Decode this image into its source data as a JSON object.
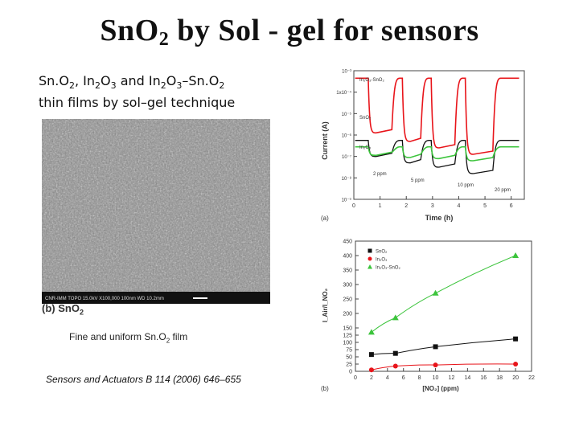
{
  "title_main": "Sn",
  "title_o": "O",
  "title_sub": "2",
  "title_rest": " by Sol - gel for sensors",
  "subtitle_line1_parts": [
    "Sn.O",
    "2",
    ", In",
    "2",
    "O",
    "3",
    " and In",
    "2",
    "O",
    "3",
    "–Sn.O",
    "2"
  ],
  "subtitle_line2": "thin films by sol–gel technique",
  "sem": {
    "info": "CNR-IMM     TOPO     15.0kV  X100,000    100nm    WD 10.2mm",
    "label_prefix": "(b) SnO",
    "label_sub": "2"
  },
  "caption_prefix": "Fine and uniform Sn.O",
  "caption_sub": "2",
  "caption_suffix": " film",
  "reference": "Sensors and Actuators B 114 (2006) 646–655",
  "chart_data": [
    {
      "type": "line",
      "panel_label": "(a)",
      "xlabel": "Time (h)",
      "ylabel": "Current (A)",
      "xlim": [
        0,
        6.5
      ],
      "x_ticks": [
        "0",
        "1",
        "2",
        "3",
        "4",
        "5",
        "6"
      ],
      "y_scale": "log",
      "y_ticks": [
        "10⁻⁹",
        "10⁻⁸",
        "10⁻⁷",
        "10⁻⁶",
        "10⁻⁵",
        "1x10⁻⁴",
        "10⁻³"
      ],
      "series_labels": [
        "In₂O₃-SnO₂",
        "SnO₂",
        "In₂O₃"
      ],
      "annotations": [
        "2 ppm",
        "5 ppm",
        "10 ppm",
        "20 ppm"
      ],
      "colors": {
        "In2O3-SnO2": "#e8141a",
        "SnO2": "#111111",
        "In2O3": "#3cc43c"
      }
    },
    {
      "type": "scatter",
      "panel_label": "(b)",
      "xlabel": "[NO₂] (ppm)",
      "ylabel": "I_Air/I_NO₂",
      "xlim": [
        0,
        22
      ],
      "ylim": [
        0,
        450
      ],
      "x_ticks": [
        0,
        2,
        4,
        6,
        8,
        10,
        12,
        14,
        16,
        18,
        20,
        22
      ],
      "y_ticks": [
        0,
        25,
        50,
        75,
        100,
        125,
        150,
        200,
        250,
        300,
        350,
        400,
        450
      ],
      "legend_position": "top-left",
      "series": [
        {
          "name": "SnO₂",
          "marker": "square",
          "color": "#111111",
          "x": [
            2,
            5,
            10,
            20
          ],
          "y": [
            58,
            62,
            85,
            112
          ]
        },
        {
          "name": "In₂O₃",
          "marker": "circle",
          "color": "#e8141a",
          "x": [
            2,
            5,
            10,
            20
          ],
          "y": [
            5,
            18,
            22,
            25
          ]
        },
        {
          "name": "In₂O₃-SnO₂",
          "marker": "triangle",
          "color": "#3cc43c",
          "x": [
            2,
            5,
            10,
            20
          ],
          "y": [
            135,
            185,
            270,
            400
          ]
        }
      ]
    }
  ]
}
